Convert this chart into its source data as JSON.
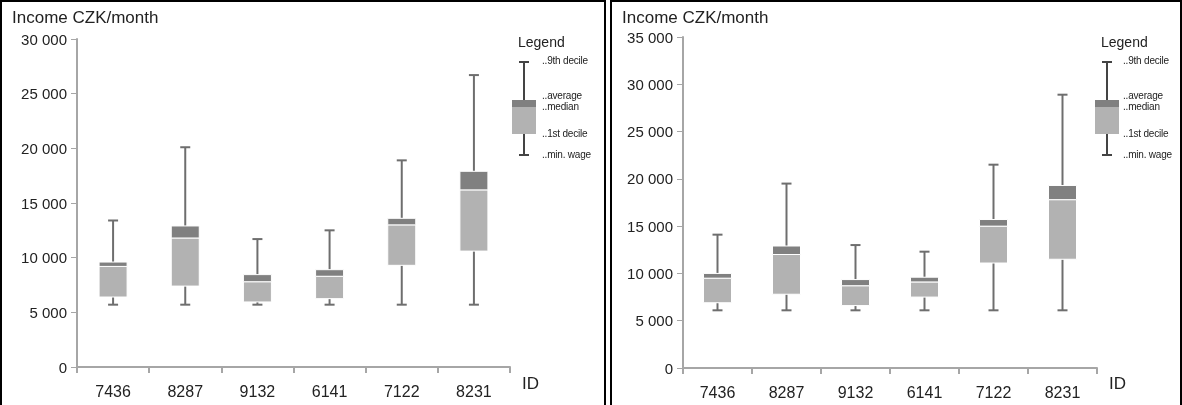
{
  "chart_data": [
    {
      "type": "box",
      "ylabel": "Income CZK/month",
      "xlabel": "ID",
      "legend_title": "Legend",
      "categories": [
        "7436",
        "8287",
        "9132",
        "6141",
        "7122",
        "8231"
      ],
      "ylim": [
        0,
        30000
      ],
      "yticks": [
        {
          "value": 0,
          "label": "0"
        },
        {
          "value": 5000,
          "label": "5 000"
        },
        {
          "value": 10000,
          "label": "10 000"
        },
        {
          "value": 15000,
          "label": "15 000"
        },
        {
          "value": 20000,
          "label": "20 000"
        },
        {
          "value": 25000,
          "label": "25 000"
        },
        {
          "value": 30000,
          "label": "30 000"
        }
      ],
      "series": [
        {
          "color": "#b2b2b2",
          "boxes": [
            {
              "low": 5700,
              "q1": 6400,
              "median": 9200,
              "q3": 9600,
              "high": 13400
            },
            {
              "low": 5700,
              "q1": 7400,
              "median": 11800,
              "q3": 12900,
              "high": 20100
            },
            {
              "low": 5700,
              "q1": 5950,
              "median": 7800,
              "q3": 8450,
              "high": 11700
            },
            {
              "low": 5700,
              "q1": 6250,
              "median": 8300,
              "q3": 8900,
              "high": 12500
            },
            {
              "low": 5700,
              "q1": 9300,
              "median": 13000,
              "q3": 13600,
              "high": 18900
            },
            {
              "low": 5700,
              "q1": 10600,
              "median": 16200,
              "q3": 17900,
              "high": 26700
            }
          ]
        }
      ],
      "annotations": [
        "..9th decile",
        "..average",
        "..median",
        "..1st decile",
        "..min. wage"
      ]
    },
    {
      "type": "box",
      "ylabel": "Income CZK/month",
      "xlabel": "ID",
      "legend_title": "Legend",
      "categories": [
        "7436",
        "8287",
        "9132",
        "6141",
        "7122",
        "8231"
      ],
      "ylim": [
        0,
        35000
      ],
      "yticks": [
        {
          "value": 0,
          "label": "0"
        },
        {
          "value": 5000,
          "label": "5 000"
        },
        {
          "value": 10000,
          "label": "10 000"
        },
        {
          "value": 15000,
          "label": "15 000"
        },
        {
          "value": 20000,
          "label": "20 000"
        },
        {
          "value": 25000,
          "label": "25 000"
        },
        {
          "value": 30000,
          "label": "30 000"
        },
        {
          "value": 35000,
          "label": "35 000"
        }
      ],
      "series": [
        {
          "color": "#b2b2b2",
          "boxes": [
            {
              "low": 6100,
              "q1": 6900,
              "median": 9500,
              "q3": 10000,
              "high": 14100
            },
            {
              "low": 6100,
              "q1": 7800,
              "median": 12000,
              "q3": 12900,
              "high": 19500
            },
            {
              "low": 6100,
              "q1": 6600,
              "median": 8700,
              "q3": 9350,
              "high": 13000
            },
            {
              "low": 6100,
              "q1": 7500,
              "median": 9100,
              "q3": 9600,
              "high": 12300
            },
            {
              "low": 6100,
              "q1": 11100,
              "median": 15000,
              "q3": 15700,
              "high": 21500
            },
            {
              "low": 6100,
              "q1": 11500,
              "median": 17800,
              "q3": 19300,
              "high": 28900
            }
          ]
        }
      ],
      "annotations": [
        "..9th decile",
        "..average",
        "..median",
        "..1st decile",
        "..min. wage"
      ]
    }
  ]
}
